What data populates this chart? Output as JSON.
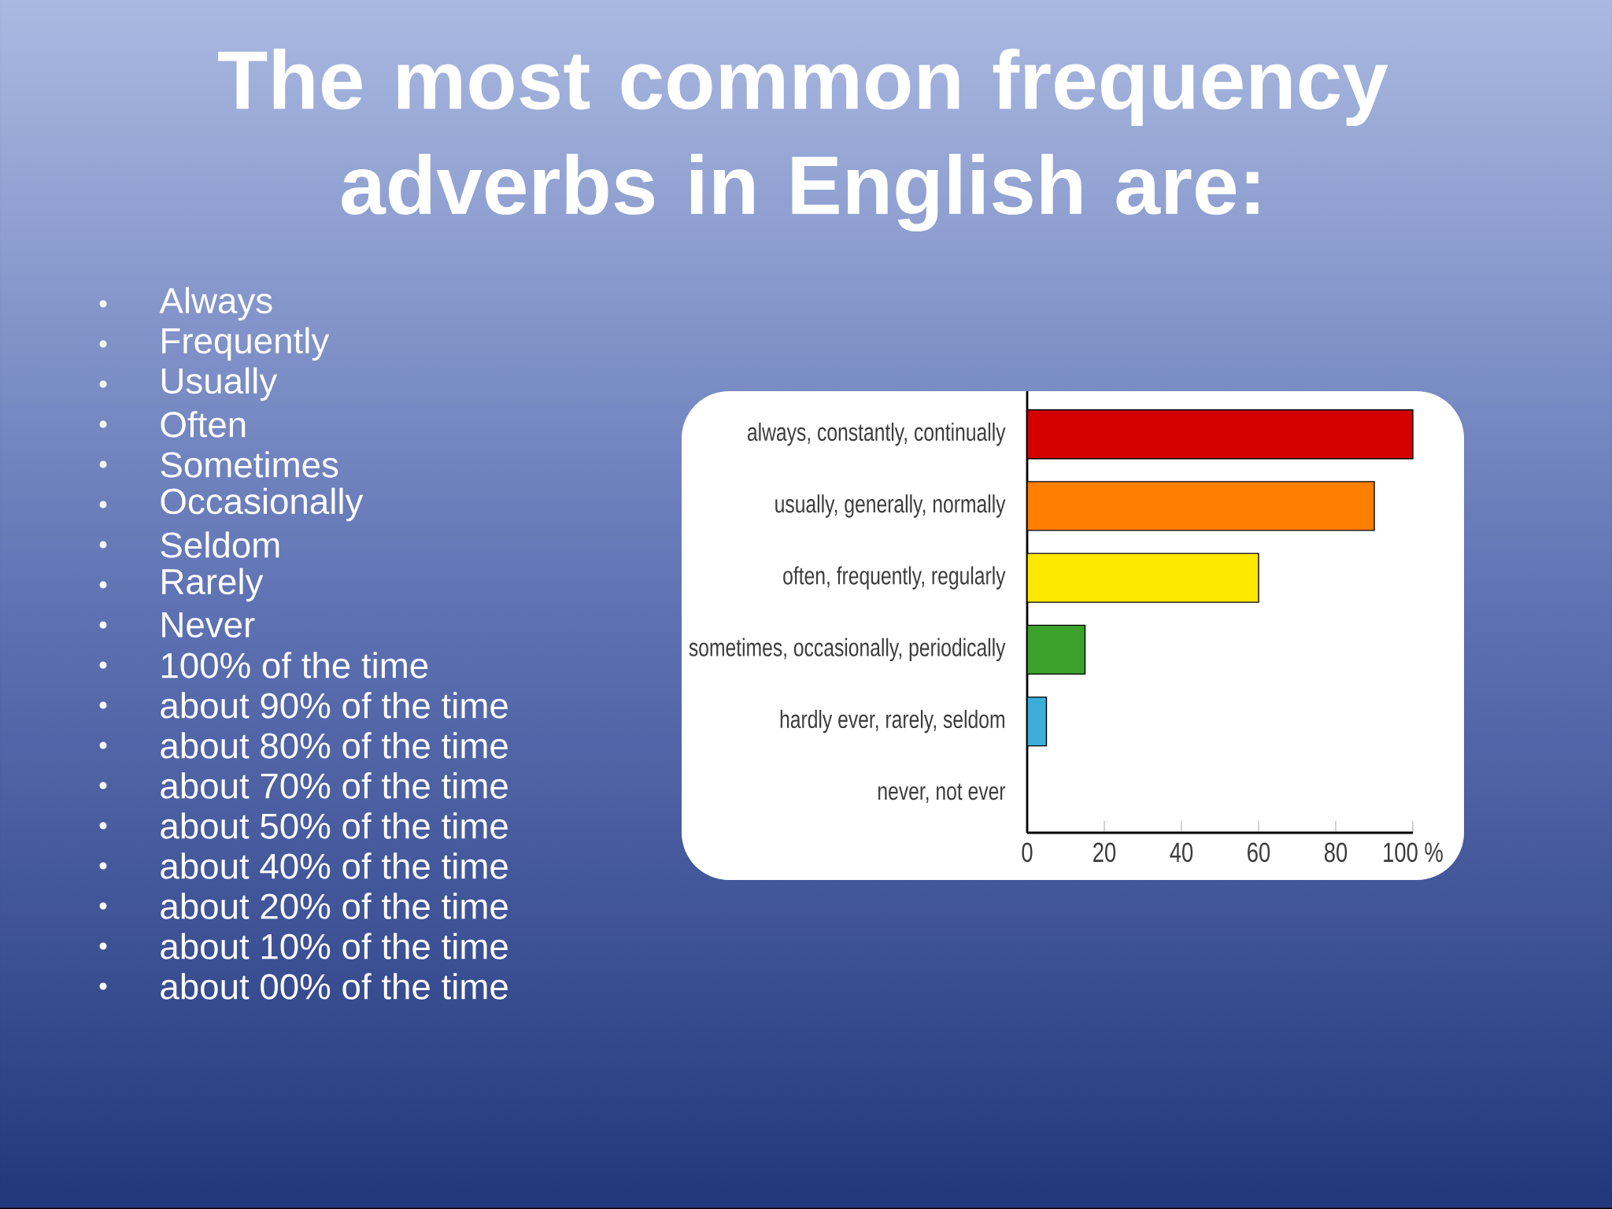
{
  "chart_data": {
    "type": "bar",
    "orientation": "horizontal",
    "title": "The most common frequency adverbs in English are:",
    "categories": [
      "always, constantly, continually",
      "usually, generally, normally",
      "often, frequently, regularly",
      "sometimes, occasionally, periodically",
      "hardly ever, rarely, seldom",
      "never, not ever"
    ],
    "values": [
      100,
      90,
      60,
      15,
      5,
      0
    ],
    "colors": [
      "#d40000",
      "#ff7f00",
      "#ffe800",
      "#3ca22c",
      "#3aaed8",
      "#ffffff"
    ],
    "xlim": [
      0,
      100
    ],
    "xticks": [
      0,
      20,
      40,
      60,
      80,
      {
        "value": 100,
        "label": "100 %"
      }
    ],
    "grid": false,
    "annotations": [
      "Always",
      "Frequently",
      "Usually",
      "Often",
      "Sometimes",
      "Occasionally",
      "Seldom",
      "Rarely",
      "Never",
      "100% of the time",
      "about 90% of the time",
      "about 80% of the time",
      "about 70% of the time",
      "about 50% of the time",
      "about 40% of the time",
      "about 20% of the time",
      "about 10% of the time",
      "about 00% of the time"
    ]
  }
}
